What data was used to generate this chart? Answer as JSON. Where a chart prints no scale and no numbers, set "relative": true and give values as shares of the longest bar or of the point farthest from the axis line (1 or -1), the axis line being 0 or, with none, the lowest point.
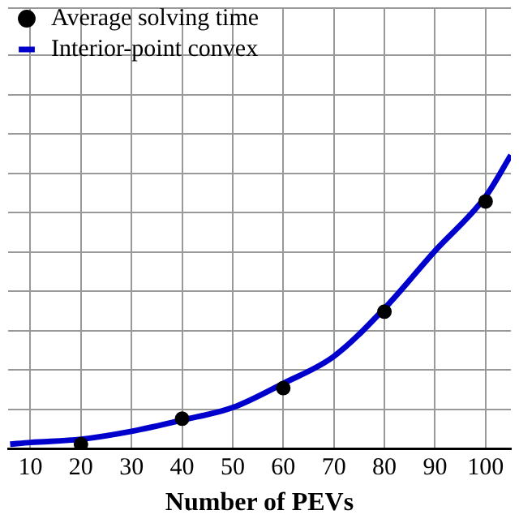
{
  "chart_data": {
    "type": "line",
    "relative": true,
    "xlabel": "Number of PEVs",
    "xlim": [
      5.6,
      105
    ],
    "xticks": [
      10,
      20,
      30,
      40,
      50,
      60,
      70,
      80,
      90,
      100
    ],
    "grid": true,
    "legend": "top left",
    "series": [
      {
        "name": "Average solving time",
        "type": "scatter",
        "color": "#000000",
        "marker": "circle",
        "x": [
          20,
          40,
          60,
          80,
          100
        ],
        "values": [
          0.016,
          0.103,
          0.207,
          0.467,
          0.842
        ]
      },
      {
        "name": "Interior-point convex",
        "color": "#0000cc",
        "marker": "none",
        "line_style": "solid",
        "x": [
          6,
          10,
          20,
          30,
          40,
          50,
          60,
          70,
          80,
          90,
          100,
          105
        ],
        "values": [
          0.016,
          0.022,
          0.033,
          0.06,
          0.098,
          0.141,
          0.223,
          0.315,
          0.478,
          0.674,
          0.859,
          1
        ]
      }
    ]
  }
}
